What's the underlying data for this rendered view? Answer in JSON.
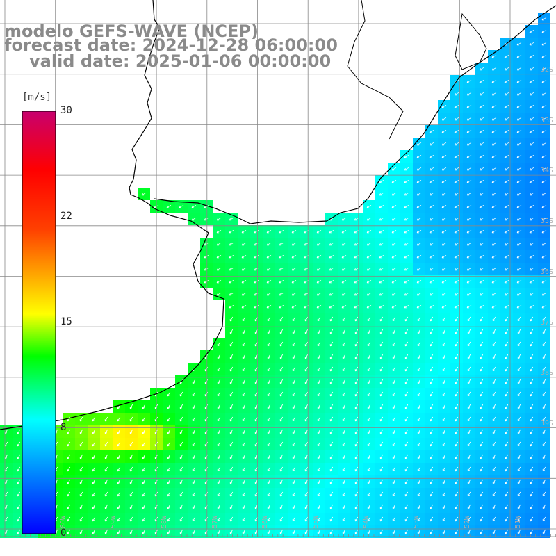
{
  "title": {
    "line1": "modelo GEFS-WAVE (NCEP)",
    "line2": "forecast date: 2024-12-28 06:00:00",
    "line3": "valid date: 2025-01-06 00:00:00"
  },
  "colorbar": {
    "unit": "[m/s]",
    "ticks": [
      "30",
      "22",
      "15",
      "8",
      "0"
    ],
    "tick_values": [
      30,
      22,
      15,
      8,
      0
    ],
    "min": 0,
    "max": 30,
    "colors": [
      "#0000ff",
      "#00c8ff",
      "#00ff00",
      "#ffff00",
      "#ff0000",
      "#c8006e"
    ]
  },
  "map": {
    "lat_labels": [
      "32S",
      "33S",
      "34S",
      "35S",
      "36S",
      "37S",
      "38S",
      "39S"
    ],
    "lon_labels": [
      "60W",
      "59W",
      "58W",
      "57W",
      "56W",
      "55W",
      "54W",
      "53W",
      "52W",
      "51W"
    ],
    "land_color": "#ffffff",
    "grid_color": "#888888",
    "arrow_color": "#ffffff"
  }
}
